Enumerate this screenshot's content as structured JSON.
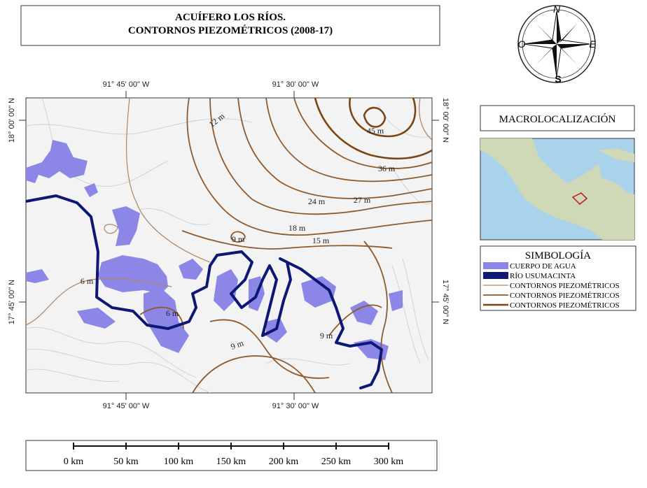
{
  "title": {
    "line1": "ACUÍFERO LOS RÍOS.",
    "line2": "CONTORNOS PIEZOMÉTRICOS (2008-17)"
  },
  "compass": {
    "north": "N",
    "west": "O",
    "east": "E",
    "south": "S"
  },
  "map": {
    "coords": {
      "top": [
        "91° 45' 00\" W",
        "91° 30' 00\" W"
      ],
      "bottom": [
        "91° 45' 00\" W",
        "91° 30' 00\" W"
      ],
      "left": [
        "18° 00' 00\" N",
        "17° 45' 00\" N"
      ],
      "right": [
        "18° 00' 00\" N",
        "17° 45' 00\" N"
      ]
    },
    "contour_labels": [
      "12 m",
      "45 m",
      "36 m",
      "24 m",
      "27 m",
      "18 m",
      "15 m",
      "9 m",
      "6 m",
      "6 m",
      "9 m",
      "9 m"
    ]
  },
  "macrolocalization": {
    "title": "MACROLOCALIZACIÓN"
  },
  "legend": {
    "title": "SIMBOLOGÍA",
    "items": [
      "CUERPO DE AGUA",
      "RÍO USUMACINTA",
      "CONTORNOS PIEZOMÉTRICOS",
      "CONTORNOS PIEZOMÉTRICOS",
      "CONTORNOS PIEZOMÉTRICOS"
    ]
  },
  "scale_bar": {
    "labels": [
      "0 km",
      "50 km",
      "100 km",
      "150 km",
      "200 km",
      "250 km",
      "300 km"
    ]
  }
}
